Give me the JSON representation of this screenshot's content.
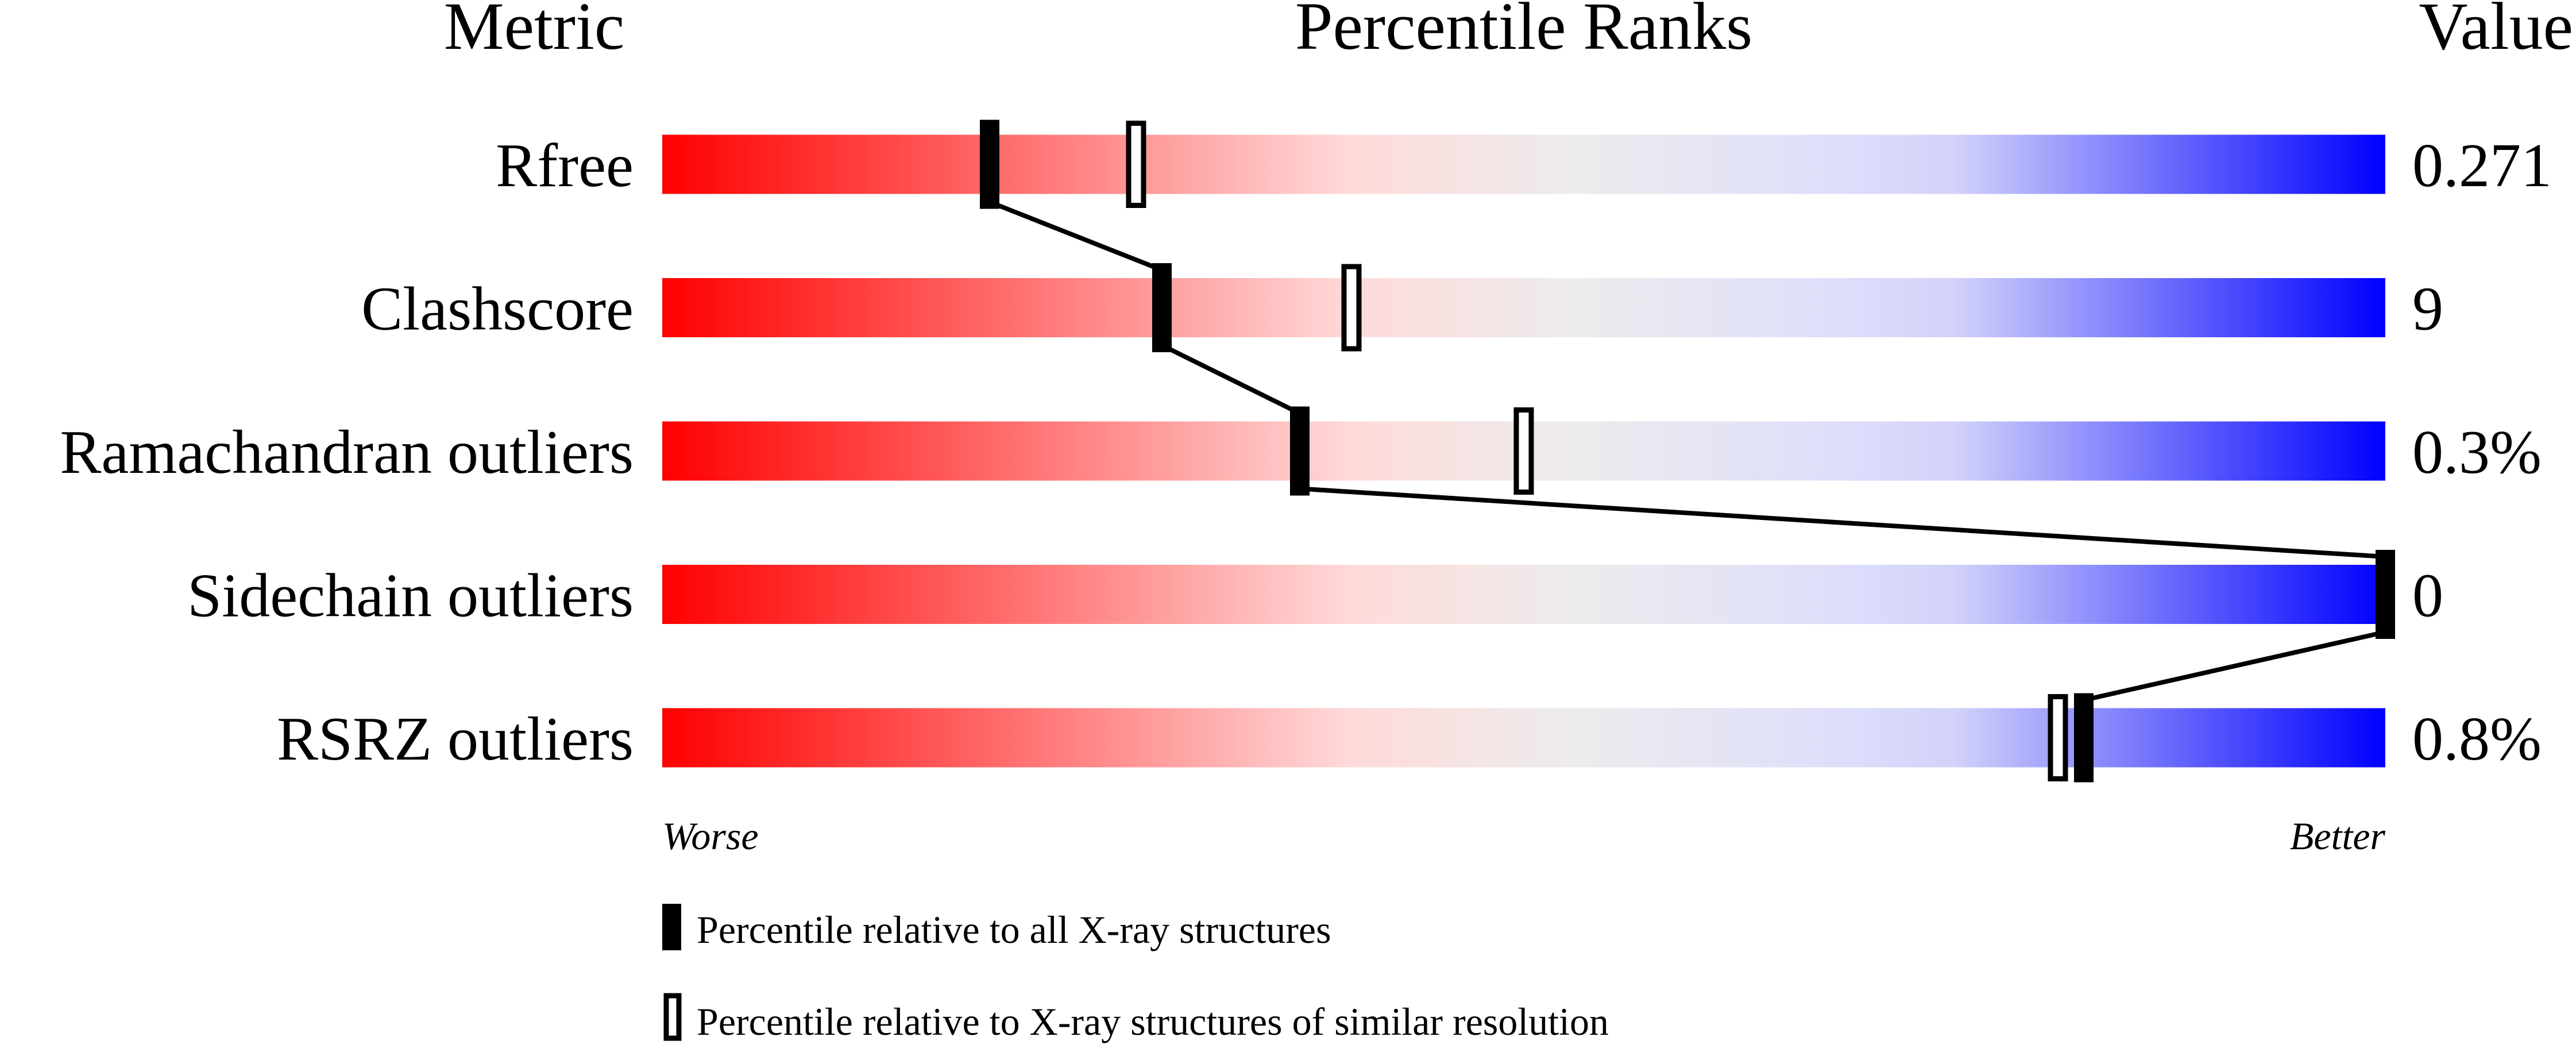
{
  "chart_data": {
    "type": "percentile-bar",
    "headers": {
      "metric": "Metric",
      "ranks": "Percentile Ranks",
      "value": "Value"
    },
    "axis": {
      "left_label": "Worse",
      "right_label": "Better",
      "range": [
        0,
        100
      ]
    },
    "gradient_colors": [
      "#ff0000",
      "#ffdada",
      "#ececec",
      "#dedefb",
      "#d2d2fa",
      "#0000ff"
    ],
    "rows": [
      {
        "metric": "Rfree",
        "value": "0.271",
        "percentile_all": 19,
        "percentile_similar": 27.5
      },
      {
        "metric": "Clashscore",
        "value": "9",
        "percentile_all": 29,
        "percentile_similar": 40
      },
      {
        "metric": "Ramachandran outliers",
        "value": "0.3%",
        "percentile_all": 37,
        "percentile_similar": 50
      },
      {
        "metric": "Sidechain outliers",
        "value": "0",
        "percentile_all": 100,
        "percentile_similar": null
      },
      {
        "metric": "RSRZ outliers",
        "value": "0.8%",
        "percentile_all": 82.5,
        "percentile_similar": 81
      }
    ],
    "legend": [
      {
        "marker": "filled",
        "label": "Percentile relative to all X-ray structures"
      },
      {
        "marker": "open",
        "label": "Percentile relative to X-ray structures of similar resolution"
      }
    ]
  }
}
